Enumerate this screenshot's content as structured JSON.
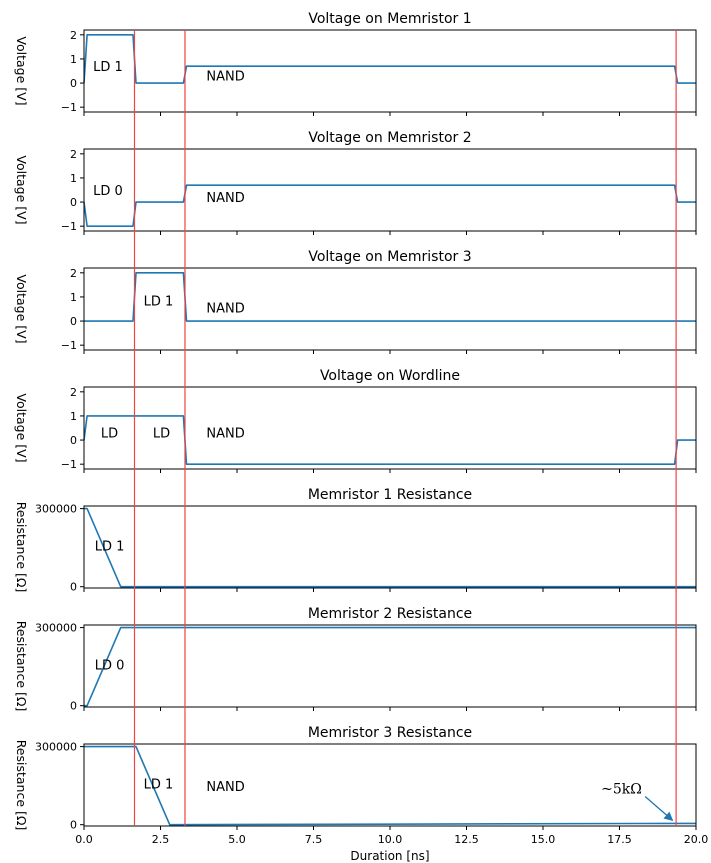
{
  "figure": {
    "xlabel": "Duration [ns]",
    "x_ticks": [
      "0.0",
      "2.5",
      "5.0",
      "7.5",
      "10.0",
      "12.5",
      "15.0",
      "17.5",
      "20.0"
    ]
  },
  "chart_data": [
    {
      "type": "line",
      "title": "Voltage on Memristor 1",
      "ylabel": "Voltage [V]",
      "xlim": [
        0,
        20
      ],
      "ylim": [
        -1.2,
        2.2
      ],
      "y_ticks": [
        -1,
        0,
        1,
        2
      ],
      "y_tick_labels": [
        "−1",
        "0",
        "1",
        "2"
      ],
      "series": [
        {
          "x": [
            0,
            0.1,
            1.6,
            1.7,
            3.25,
            3.35,
            19.3,
            19.4,
            20
          ],
          "y": [
            0,
            2,
            2,
            0,
            0,
            0.7,
            0.7,
            0,
            0
          ]
        }
      ],
      "annotations": [
        {
          "text": "LD 1",
          "x": 0.3,
          "y": 0.5
        },
        {
          "text": "NAND",
          "x": 4.0,
          "y": 0.1
        }
      ]
    },
    {
      "type": "line",
      "title": "Voltage on Memristor 2",
      "ylabel": "Voltage [V]",
      "xlim": [
        0,
        20
      ],
      "ylim": [
        -1.2,
        2.2
      ],
      "y_ticks": [
        -1,
        0,
        1,
        2
      ],
      "y_tick_labels": [
        "−1",
        "0",
        "1",
        "2"
      ],
      "series": [
        {
          "x": [
            0,
            0.1,
            1.6,
            1.7,
            3.25,
            3.35,
            19.3,
            19.4,
            20
          ],
          "y": [
            0,
            -1,
            -1,
            0,
            0,
            0.7,
            0.7,
            0,
            0
          ]
        }
      ],
      "annotations": [
        {
          "text": "LD 0",
          "x": 0.3,
          "y": 0.3
        },
        {
          "text": "NAND",
          "x": 4.0,
          "y": 0.0
        }
      ]
    },
    {
      "type": "line",
      "title": "Voltage on Memristor 3",
      "ylabel": "Voltage [V]",
      "xlim": [
        0,
        20
      ],
      "ylim": [
        -1.2,
        2.2
      ],
      "y_ticks": [
        -1,
        0,
        1,
        2
      ],
      "y_tick_labels": [
        "−1",
        "0",
        "1",
        "2"
      ],
      "series": [
        {
          "x": [
            0,
            1.6,
            1.7,
            3.25,
            3.35,
            20
          ],
          "y": [
            0,
            0,
            2,
            2,
            0,
            0
          ]
        }
      ],
      "annotations": [
        {
          "text": "LD 1",
          "x": 1.95,
          "y": 0.65
        },
        {
          "text": "NAND",
          "x": 4.0,
          "y": 0.35
        }
      ]
    },
    {
      "type": "line",
      "title": "Voltage on Wordline",
      "ylabel": "Voltage [V]",
      "xlim": [
        0,
        20
      ],
      "ylim": [
        -1.2,
        2.2
      ],
      "y_ticks": [
        -1,
        0,
        1,
        2
      ],
      "y_tick_labels": [
        "−1",
        "0",
        "1",
        "2"
      ],
      "series": [
        {
          "x": [
            0,
            0.1,
            3.25,
            3.35,
            19.3,
            19.4,
            20
          ],
          "y": [
            0,
            1,
            1,
            -1,
            -1,
            0,
            0
          ]
        }
      ],
      "annotations": [
        {
          "text": "LD",
          "x": 0.55,
          "y": 0.1
        },
        {
          "text": "LD",
          "x": 2.25,
          "y": 0.1
        },
        {
          "text": "NAND",
          "x": 4.0,
          "y": 0.1
        }
      ]
    },
    {
      "type": "line",
      "title": "Memristor 1 Resistance",
      "ylabel": "Resistance [Ω]",
      "xlim": [
        0,
        20
      ],
      "ylim": [
        -5000,
        310000
      ],
      "y_ticks": [
        0,
        300000
      ],
      "y_tick_labels": [
        "0",
        "300000"
      ],
      "series": [
        {
          "x": [
            0,
            0.1,
            1.2,
            20
          ],
          "y": [
            300000,
            300000,
            0,
            0
          ]
        }
      ],
      "annotations": [
        {
          "text": "LD 1",
          "x": 0.35,
          "y": 140000
        }
      ]
    },
    {
      "type": "line",
      "title": "Memristor 2 Resistance",
      "ylabel": "Resistance [Ω]",
      "xlim": [
        0,
        20
      ],
      "ylim": [
        -5000,
        310000
      ],
      "y_ticks": [
        0,
        300000
      ],
      "y_tick_labels": [
        "0",
        "300000"
      ],
      "series": [
        {
          "x": [
            0,
            0.1,
            1.2,
            20
          ],
          "y": [
            0,
            0,
            300000,
            300000
          ]
        }
      ],
      "annotations": [
        {
          "text": "LD 0",
          "x": 0.35,
          "y": 140000
        }
      ]
    },
    {
      "type": "line",
      "title": "Memristor 3 Resistance",
      "ylabel": "Resistance [Ω]",
      "xlim": [
        0,
        20
      ],
      "ylim": [
        -5000,
        310000
      ],
      "y_ticks": [
        0,
        300000
      ],
      "y_tick_labels": [
        "0",
        "300000"
      ],
      "series": [
        {
          "x": [
            0,
            1.7,
            2.8,
            19.3,
            20
          ],
          "y": [
            300000,
            300000,
            0,
            5000,
            5000
          ]
        }
      ],
      "annotations": [
        {
          "text": "LD 1",
          "x": 1.95,
          "y": 140000
        },
        {
          "text": "NAND",
          "x": 4.0,
          "y": 130000
        },
        {
          "text": "~5kΩ",
          "x": 16.9,
          "y": 120000,
          "arrow_to": [
            19.3,
            5000
          ],
          "serif": true
        }
      ]
    }
  ],
  "vertical_markers": {
    "x": [
      1.65,
      3.3,
      19.35
    ],
    "color": "#ee4444"
  },
  "colors": {
    "line": "#1f77b4",
    "marker": "#ee4444",
    "axes": "#000000"
  }
}
